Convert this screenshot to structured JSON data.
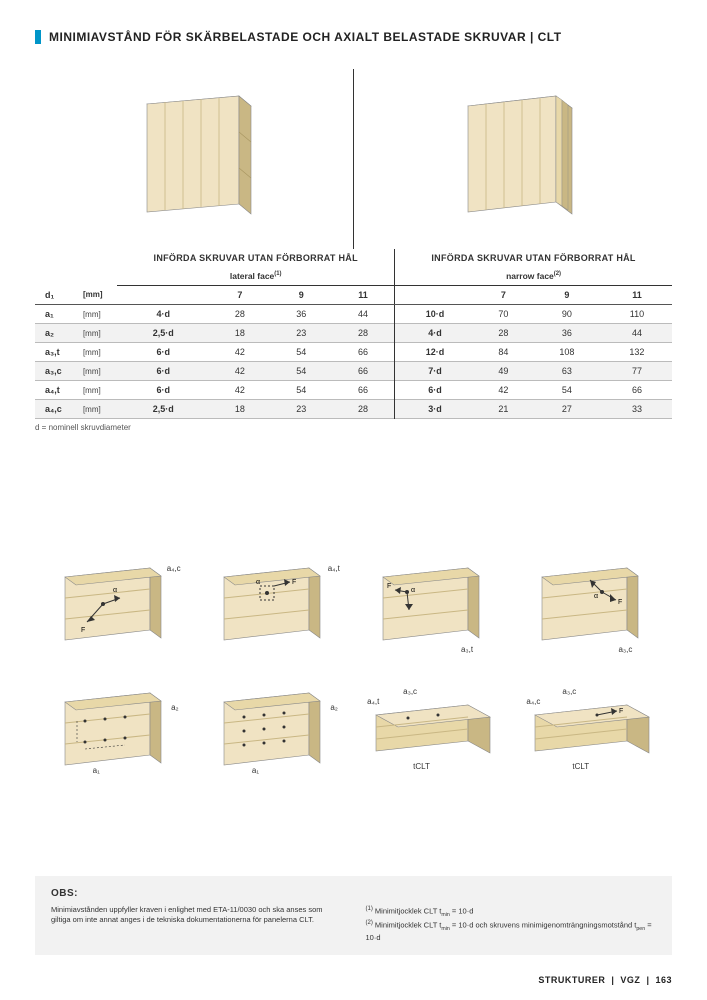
{
  "title": "MINIMIAVSTÅND FÖR SKÄRBELASTADE OCH AXIALT BELASTADE SKRUVAR | CLT",
  "table": {
    "section1": "INFÖRDA SKRUVAR UTAN FÖRBORRAT HÅL",
    "sub1": "lateral face",
    "sub1_sup": "(1)",
    "section2": "INFÖRDA SKRUVAR UTAN FÖRBORRAT HÅL",
    "sub2": "narrow face",
    "sub2_sup": "(2)",
    "d_col": "d₁",
    "d_unit": "[mm]",
    "col_vals": [
      "7",
      "9",
      "11",
      "7",
      "9",
      "11"
    ],
    "rows": [
      {
        "l": "a₁",
        "u": "[mm]",
        "f1": "4·d",
        "v": [
          "28",
          "36",
          "44"
        ],
        "f2": "10·d",
        "w": [
          "70",
          "90",
          "110"
        ],
        "alt": false
      },
      {
        "l": "a₂",
        "u": "[mm]",
        "f1": "2,5·d",
        "v": [
          "18",
          "23",
          "28"
        ],
        "f2": "4·d",
        "w": [
          "28",
          "36",
          "44"
        ],
        "alt": true
      },
      {
        "l": "a₃,t",
        "u": "[mm]",
        "f1": "6·d",
        "v": [
          "42",
          "54",
          "66"
        ],
        "f2": "12·d",
        "w": [
          "84",
          "108",
          "132"
        ],
        "alt": false
      },
      {
        "l": "a₃,c",
        "u": "[mm]",
        "f1": "6·d",
        "v": [
          "42",
          "54",
          "66"
        ],
        "f2": "7·d",
        "w": [
          "49",
          "63",
          "77"
        ],
        "alt": true
      },
      {
        "l": "a₄,t",
        "u": "[mm]",
        "f1": "6·d",
        "v": [
          "42",
          "54",
          "66"
        ],
        "f2": "6·d",
        "w": [
          "42",
          "54",
          "66"
        ],
        "alt": false
      },
      {
        "l": "a₄,c",
        "u": "[mm]",
        "f1": "2,5·d",
        "v": [
          "18",
          "23",
          "28"
        ],
        "f2": "3·d",
        "w": [
          "21",
          "27",
          "33"
        ],
        "alt": true
      }
    ],
    "foot": "d = nominell skruvdiameter"
  },
  "diagram_labels": {
    "r1": [
      "a₄,c",
      "a₄,t",
      "a₃,t",
      "a₃,c"
    ],
    "r2_top": [
      "a₂",
      "a₂",
      "a₃,c",
      "a₃,c"
    ],
    "r2_bot": [
      "a₁",
      "a₁",
      "tCLT",
      "tCLT"
    ],
    "extra": [
      "F",
      "α",
      "a₄,t",
      "a₄,c"
    ]
  },
  "obs": {
    "title": "OBS:",
    "left": "Minimiavstånden uppfyller kraven i enlighet med ETA-11/0030 och ska anses som giltiga om inte annat anges i de tekniska dokumentationerna för panelerna CLT.",
    "r1_sup": "(1)",
    "r1": " Minimitjocklek CLT t",
    "r1_sub": "min",
    "r1_tail": " = 10·d",
    "r2_sup": "(2)",
    "r2": " Minimitjocklek CLT t",
    "r2_sub": "min",
    "r2_tail": " = 10·d och skruvens minimigenomträngningsmotstånd t",
    "r2_sub2": "pen",
    "r2_tail2": " = 10·d"
  },
  "footer": {
    "a": "STRUKTURER",
    "b": "VGZ",
    "c": "163"
  },
  "colors": {
    "accent": "#0095c8",
    "wood_light": "#f0e3c3",
    "wood_mid": "#e8d8a8",
    "wood_dark": "#c9b784",
    "line": "#333333"
  }
}
